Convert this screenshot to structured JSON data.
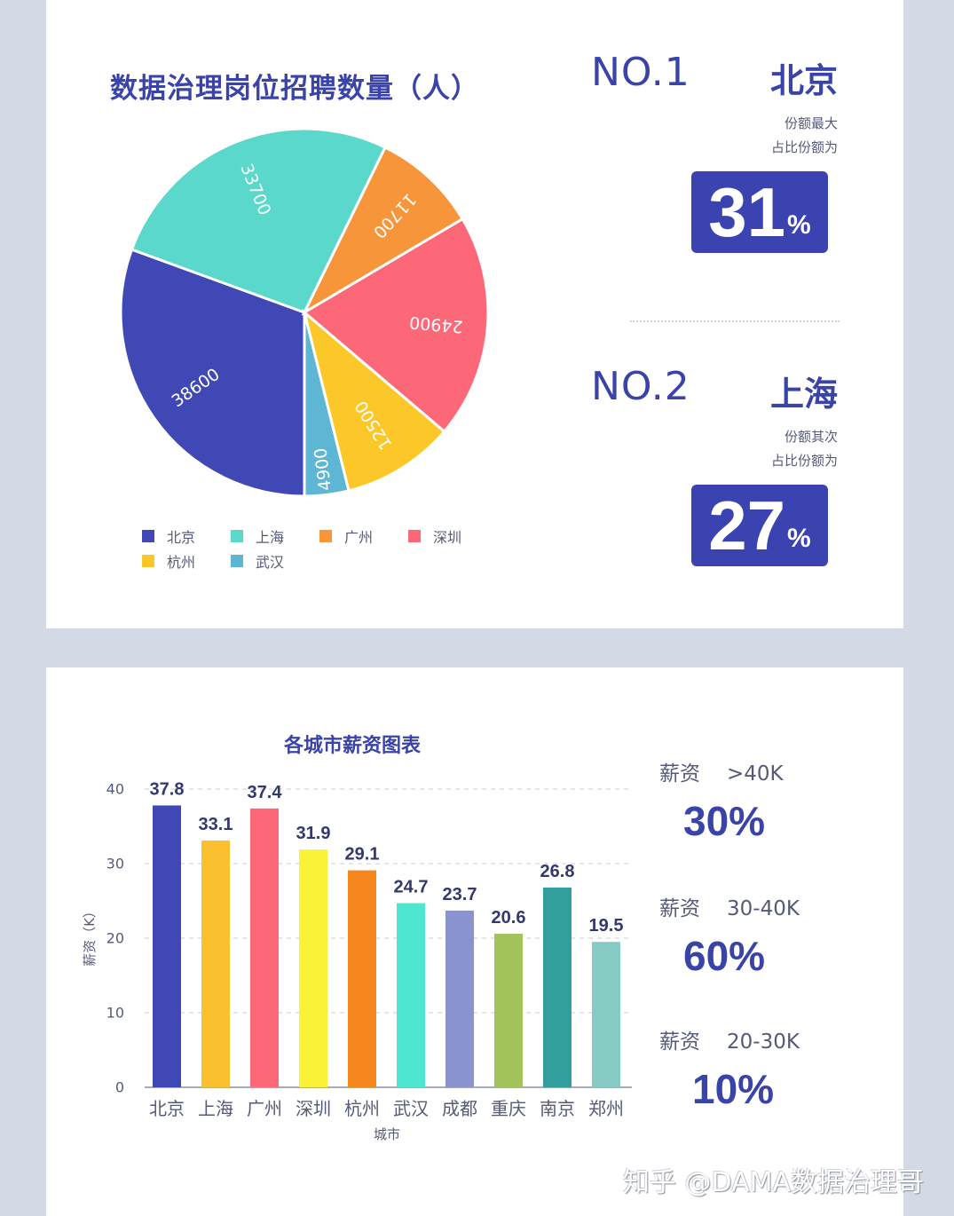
{
  "pie_section": {
    "title": "数据治理岗位招聘数量（人）",
    "rank1": {
      "no": "NO.1",
      "city": "北京",
      "desc1": "份额最大",
      "desc2": "占比份额为",
      "pct": "31",
      "pct_sign": "%"
    },
    "rank2": {
      "no": "NO.2",
      "city": "上海",
      "desc1": "份额其次",
      "desc2": "占比份额为",
      "pct": "27",
      "pct_sign": "%"
    }
  },
  "bar_section": {
    "title": "各城市薪资图表",
    "stats": [
      {
        "label": "薪资",
        "range": ">40K",
        "pct": "30%"
      },
      {
        "label": "薪资",
        "range": "30-40K",
        "pct": "60%"
      },
      {
        "label": "薪资",
        "range": "20-30K",
        "pct": "10%"
      }
    ]
  },
  "watermark": "知乎 @DAMA数据治理哥",
  "chart_data": [
    {
      "type": "pie",
      "title": "数据治理岗位招聘数量（人）",
      "categories": [
        "北京",
        "上海",
        "广州",
        "深圳",
        "杭州",
        "武汉"
      ],
      "values": [
        38600,
        33700,
        11700,
        24900,
        12500,
        4900
      ],
      "colors": [
        "#3f48b5",
        "#5ad8cc",
        "#f7953a",
        "#fc6878",
        "#fbc729",
        "#5db6d3"
      ],
      "legend_position": "bottom",
      "start_angle_deg": 180,
      "direction": "clockwise"
    },
    {
      "type": "bar",
      "title": "各城市薪资图表",
      "categories": [
        "北京",
        "上海",
        "广州",
        "深圳",
        "杭州",
        "武汉",
        "成都",
        "重庆",
        "南京",
        "郑州"
      ],
      "values": [
        37.8,
        33.1,
        37.4,
        31.9,
        29.1,
        24.7,
        23.7,
        20.6,
        26.8,
        19.5
      ],
      "colors": [
        "#3f48b5",
        "#fbc02d",
        "#fc6878",
        "#f9f236",
        "#f5861e",
        "#4ee6d0",
        "#8b93cf",
        "#a3c35b",
        "#339f9c",
        "#85cbc4"
      ],
      "xlabel": "城市",
      "ylabel": "薪资（K）",
      "ylim": [
        0,
        40
      ],
      "yticks": [
        0,
        10,
        20,
        30,
        40
      ],
      "grid": true
    }
  ]
}
